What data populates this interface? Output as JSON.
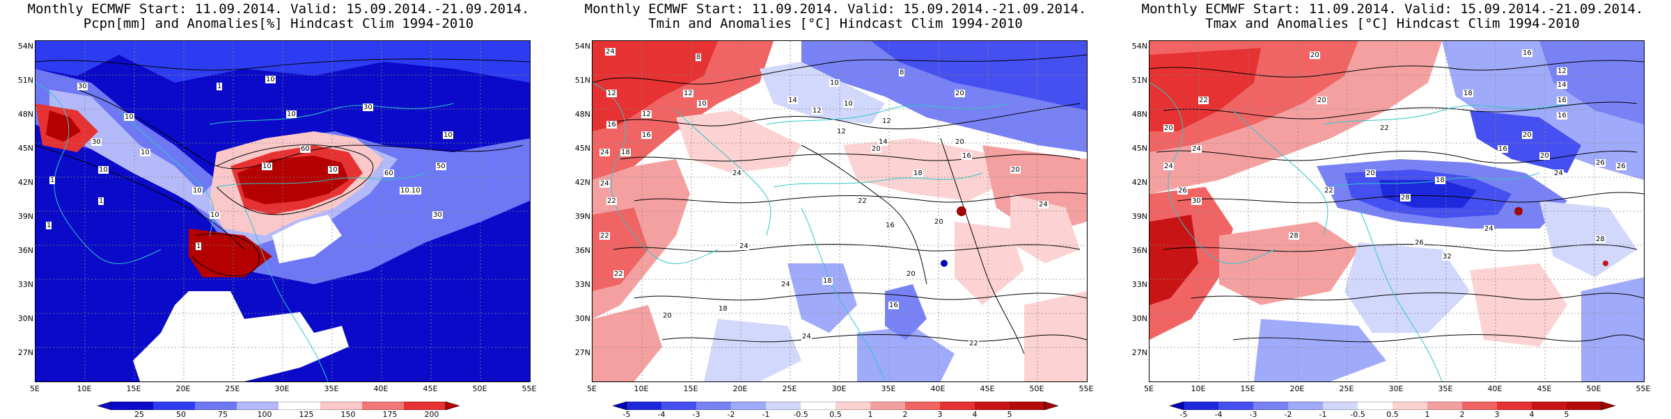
{
  "panels": [
    {
      "title_line1": "Monthly ECMWF Start: 11.09.2014. Valid: 15.09.2014.-21.09.2014.",
      "title_line2": "Pcpn[mm] and Anomalies[%] Hindcast Clim 1994-2010",
      "colorbar_labels": [
        "25",
        "50",
        "75",
        "100",
        "125",
        "150",
        "175",
        "200"
      ],
      "colorbar_colors": [
        "#0a0ac8",
        "#2d3cf0",
        "#6e78f5",
        "#b4b9fa",
        "#ffffff",
        "#fac8c8",
        "#f07878",
        "#e63232",
        "#b40000"
      ],
      "contour_labels": [
        "10",
        "10",
        "30",
        "30",
        "10",
        "1",
        "1",
        "10",
        "60",
        "10",
        "10",
        "30",
        "10",
        "50",
        "60",
        "10",
        "10.10",
        "10",
        "1",
        "30",
        "10",
        "1",
        "1"
      ]
    },
    {
      "title_line1": "Monthly ECMWF Start: 11.09.2014. Valid: 15.09.2014.-21.09.2014.",
      "title_line2": "Tmin and Anomalies [°C] Hindcast Clim 1994-2010",
      "colorbar_labels": [
        "-5",
        "-4",
        "-3",
        "-2",
        "-1",
        "-0.5",
        "0.5",
        "1",
        "2",
        "3",
        "4",
        "5"
      ],
      "colorbar_colors": [
        "#0000b4",
        "#1e28dc",
        "#4650f0",
        "#7882f5",
        "#a0aafa",
        "#d2d7fc",
        "#ffffff",
        "#fcd2d2",
        "#f5a0a0",
        "#f06464",
        "#e63232",
        "#c81414",
        "#a00000"
      ],
      "contour_labels": [
        "24",
        "8",
        "8",
        "12",
        "10",
        "12",
        "12",
        "14",
        "10",
        "12",
        "16",
        "12",
        "12",
        "14",
        "20",
        "10",
        "18",
        "16",
        "20",
        "20",
        "24",
        "24",
        "18",
        "22",
        "22",
        "24",
        "22",
        "20",
        "16",
        "16",
        "18",
        "20",
        "22",
        "24",
        "24",
        "20",
        "20",
        "18",
        "16",
        "24",
        "22",
        "24"
      ]
    },
    {
      "title_line1": "Monthly ECMWF Start: 11.09.2014. Valid: 15.09.2014.-21.09.2014.",
      "title_line2": "Tmax and Anomalies [°C] Hindcast Clim 1994-2010",
      "colorbar_labels": [
        "-5",
        "-4",
        "-3",
        "-2",
        "-1",
        "-0.5",
        "0.5",
        "1",
        "2",
        "3",
        "4",
        "5"
      ],
      "colorbar_colors": [
        "#0000b4",
        "#1e28dc",
        "#4650f0",
        "#7882f5",
        "#a0aafa",
        "#d2d7fc",
        "#ffffff",
        "#fcd2d2",
        "#f5a0a0",
        "#f06464",
        "#e63232",
        "#c81414",
        "#a00000"
      ],
      "contour_labels": [
        "20",
        "16",
        "12",
        "14",
        "16",
        "22",
        "20",
        "18",
        "16",
        "20",
        "22",
        "20",
        "24",
        "16",
        "20",
        "26",
        "24",
        "20",
        "18",
        "22",
        "24",
        "26",
        "28",
        "30",
        "28",
        "28",
        "26",
        "32",
        "24",
        "26"
      ]
    }
  ],
  "axes": {
    "lat_labels": [
      "54N",
      "51N",
      "48N",
      "45N",
      "42N",
      "39N",
      "36N",
      "33N",
      "30N",
      "27N"
    ],
    "lon_labels": [
      "5E",
      "10E",
      "15E",
      "20E",
      "25E",
      "30E",
      "35E",
      "40E",
      "45E",
      "50E",
      "55E"
    ]
  }
}
